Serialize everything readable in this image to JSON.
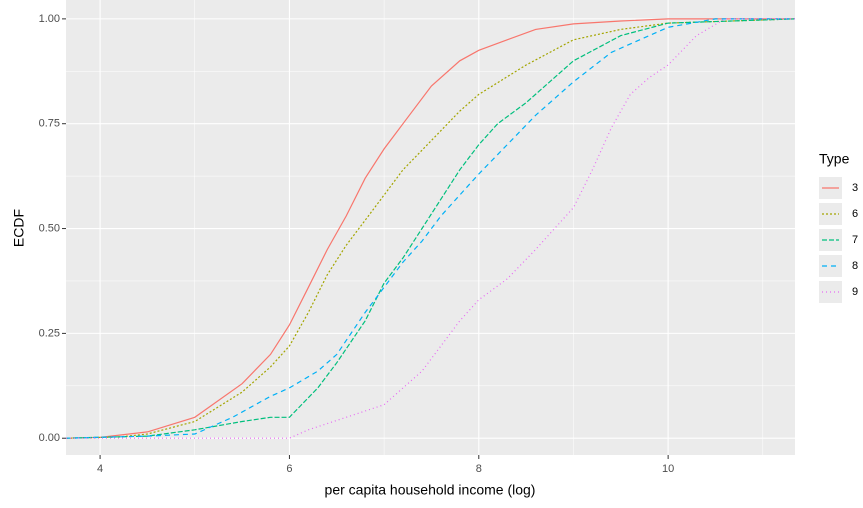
{
  "chart_data": {
    "type": "line",
    "x_label": "per capita household income (log)",
    "y_label": "ECDF",
    "legend_title": "Type",
    "legend_position": "right",
    "grid": true,
    "xlim": [
      3.64,
      11.34
    ],
    "ylim": [
      -0.04,
      1.045
    ],
    "xticks": [
      4,
      6,
      8,
      10
    ],
    "yticks": [
      {
        "value": 0,
        "label": "0.00"
      },
      {
        "value": 0.25,
        "label": "0.25"
      },
      {
        "value": 0.5,
        "label": "0.50"
      },
      {
        "value": 0.75,
        "label": "0.75"
      },
      {
        "value": 1,
        "label": "1.00"
      }
    ],
    "series": [
      {
        "name": "3",
        "color": "#F8766D",
        "dash": "none",
        "x": [
          3.64,
          4.0,
          4.5,
          5.0,
          5.5,
          5.8,
          6.0,
          6.2,
          6.4,
          6.6,
          6.8,
          7.0,
          7.2,
          7.5,
          7.8,
          8.0,
          8.3,
          8.6,
          9.0,
          9.5,
          10.0,
          11.34
        ],
        "values": [
          0,
          0.002,
          0.015,
          0.05,
          0.13,
          0.2,
          0.27,
          0.36,
          0.45,
          0.53,
          0.62,
          0.69,
          0.75,
          0.84,
          0.9,
          0.925,
          0.95,
          0.975,
          0.988,
          0.995,
          1.0,
          1.0
        ]
      },
      {
        "name": "6",
        "color": "#A3A500",
        "dash": "2,2",
        "x": [
          3.64,
          4.2,
          4.5,
          5.0,
          5.5,
          5.8,
          6.0,
          6.2,
          6.4,
          6.6,
          6.8,
          7.0,
          7.2,
          7.5,
          7.8,
          8.0,
          8.5,
          9.0,
          9.5,
          10.0,
          11.34
        ],
        "values": [
          0,
          0.003,
          0.01,
          0.04,
          0.11,
          0.17,
          0.22,
          0.3,
          0.39,
          0.46,
          0.52,
          0.58,
          0.64,
          0.71,
          0.78,
          0.82,
          0.89,
          0.95,
          0.975,
          0.99,
          1.0
        ]
      },
      {
        "name": "7",
        "color": "#00BF7D",
        "dash": "5,2",
        "x": [
          3.64,
          4.5,
          5.0,
          5.5,
          5.8,
          6.0,
          6.3,
          6.5,
          6.8,
          7.0,
          7.2,
          7.4,
          7.6,
          7.8,
          8.0,
          8.2,
          8.5,
          8.8,
          9.0,
          9.5,
          10.0,
          11.34
        ],
        "values": [
          0,
          0.005,
          0.02,
          0.04,
          0.05,
          0.05,
          0.12,
          0.18,
          0.28,
          0.37,
          0.43,
          0.5,
          0.57,
          0.64,
          0.7,
          0.75,
          0.8,
          0.86,
          0.9,
          0.96,
          0.99,
          1.0
        ]
      },
      {
        "name": "8",
        "color": "#00B0F6",
        "dash": "5,4",
        "x": [
          3.64,
          4.5,
          5.0,
          5.4,
          5.8,
          6.0,
          6.3,
          6.5,
          6.8,
          7.0,
          7.2,
          7.4,
          7.6,
          7.8,
          8.0,
          8.3,
          8.6,
          9.0,
          9.4,
          9.8,
          10.0,
          10.5,
          11.34
        ],
        "values": [
          0,
          0.005,
          0.01,
          0.05,
          0.1,
          0.12,
          0.16,
          0.2,
          0.3,
          0.36,
          0.42,
          0.47,
          0.53,
          0.58,
          0.63,
          0.7,
          0.77,
          0.85,
          0.92,
          0.96,
          0.98,
          1.0,
          1.0
        ]
      },
      {
        "name": "9",
        "color": "#E76BF3",
        "dash": "1,3",
        "x": [
          3.64,
          6.0,
          6.2,
          6.6,
          7.0,
          7.4,
          7.8,
          8.0,
          8.3,
          8.6,
          9.0,
          9.2,
          9.4,
          9.6,
          9.8,
          10.0,
          10.3,
          10.6,
          11.34
        ],
        "values": [
          0,
          0,
          0.02,
          0.05,
          0.08,
          0.16,
          0.28,
          0.33,
          0.38,
          0.45,
          0.55,
          0.64,
          0.74,
          0.82,
          0.86,
          0.89,
          0.96,
          1.0,
          1.0
        ]
      }
    ]
  }
}
